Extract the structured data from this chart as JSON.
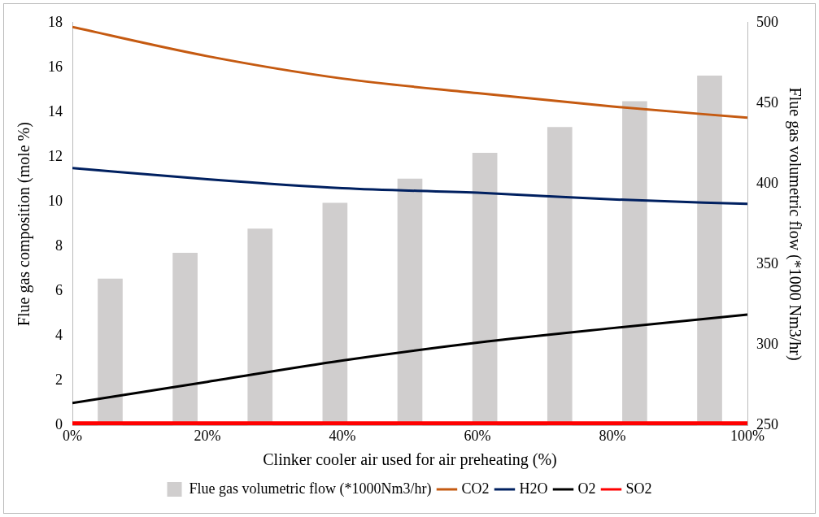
{
  "chart_data": {
    "type": "line",
    "xlabel": "Clinker cooler air used for air preheating (%)",
    "ylabel": "Flue gas composition (mole %)",
    "y2label": "Flue gas volumetric flow (*1000 Nm3/hr)",
    "x": [
      0,
      20,
      40,
      60,
      80,
      100
    ],
    "xlim": [
      0,
      100
    ],
    "xticks": [
      {
        "value": 0,
        "label": "0%"
      },
      {
        "value": 20,
        "label": "20%"
      },
      {
        "value": 40,
        "label": "40%"
      },
      {
        "value": 60,
        "label": "60%"
      },
      {
        "value": 80,
        "label": "80%"
      },
      {
        "value": 100,
        "label": "100%"
      }
    ],
    "ylim": [
      0,
      18
    ],
    "yticks": [
      0,
      2,
      4,
      6,
      8,
      10,
      12,
      14,
      16,
      18
    ],
    "y2lim": [
      250,
      500
    ],
    "y2ticks": [
      250,
      300,
      350,
      400,
      450,
      500
    ],
    "grid": false,
    "legend": "bottom",
    "series": [
      {
        "name": "Flue gas volumetric flow (*1000Nm3/hr)",
        "type": "bar",
        "axis": "y2",
        "color": "#d0cece",
        "x": [
          5.6,
          16.7,
          27.8,
          38.9,
          50,
          61.1,
          72.2,
          83.3,
          94.4
        ],
        "values": [
          341,
          357,
          372,
          388,
          403,
          419,
          435,
          451,
          467
        ]
      },
      {
        "name": "CO2",
        "color": "#c55a11",
        "values": [
          17.8,
          16.5,
          15.5,
          14.85,
          14.25,
          13.75
        ]
      },
      {
        "name": "H2O",
        "color": "#002060",
        "values": [
          11.5,
          11.0,
          10.6,
          10.4,
          10.1,
          9.9
        ]
      },
      {
        "name": "O2",
        "color": "#000000",
        "values": [
          1.0,
          1.95,
          2.9,
          3.7,
          4.35,
          4.95
        ]
      },
      {
        "name": "SO2",
        "color": "#ff0000",
        "values": [
          0.1,
          0.1,
          0.1,
          0.1,
          0.1,
          0.1
        ]
      }
    ]
  }
}
